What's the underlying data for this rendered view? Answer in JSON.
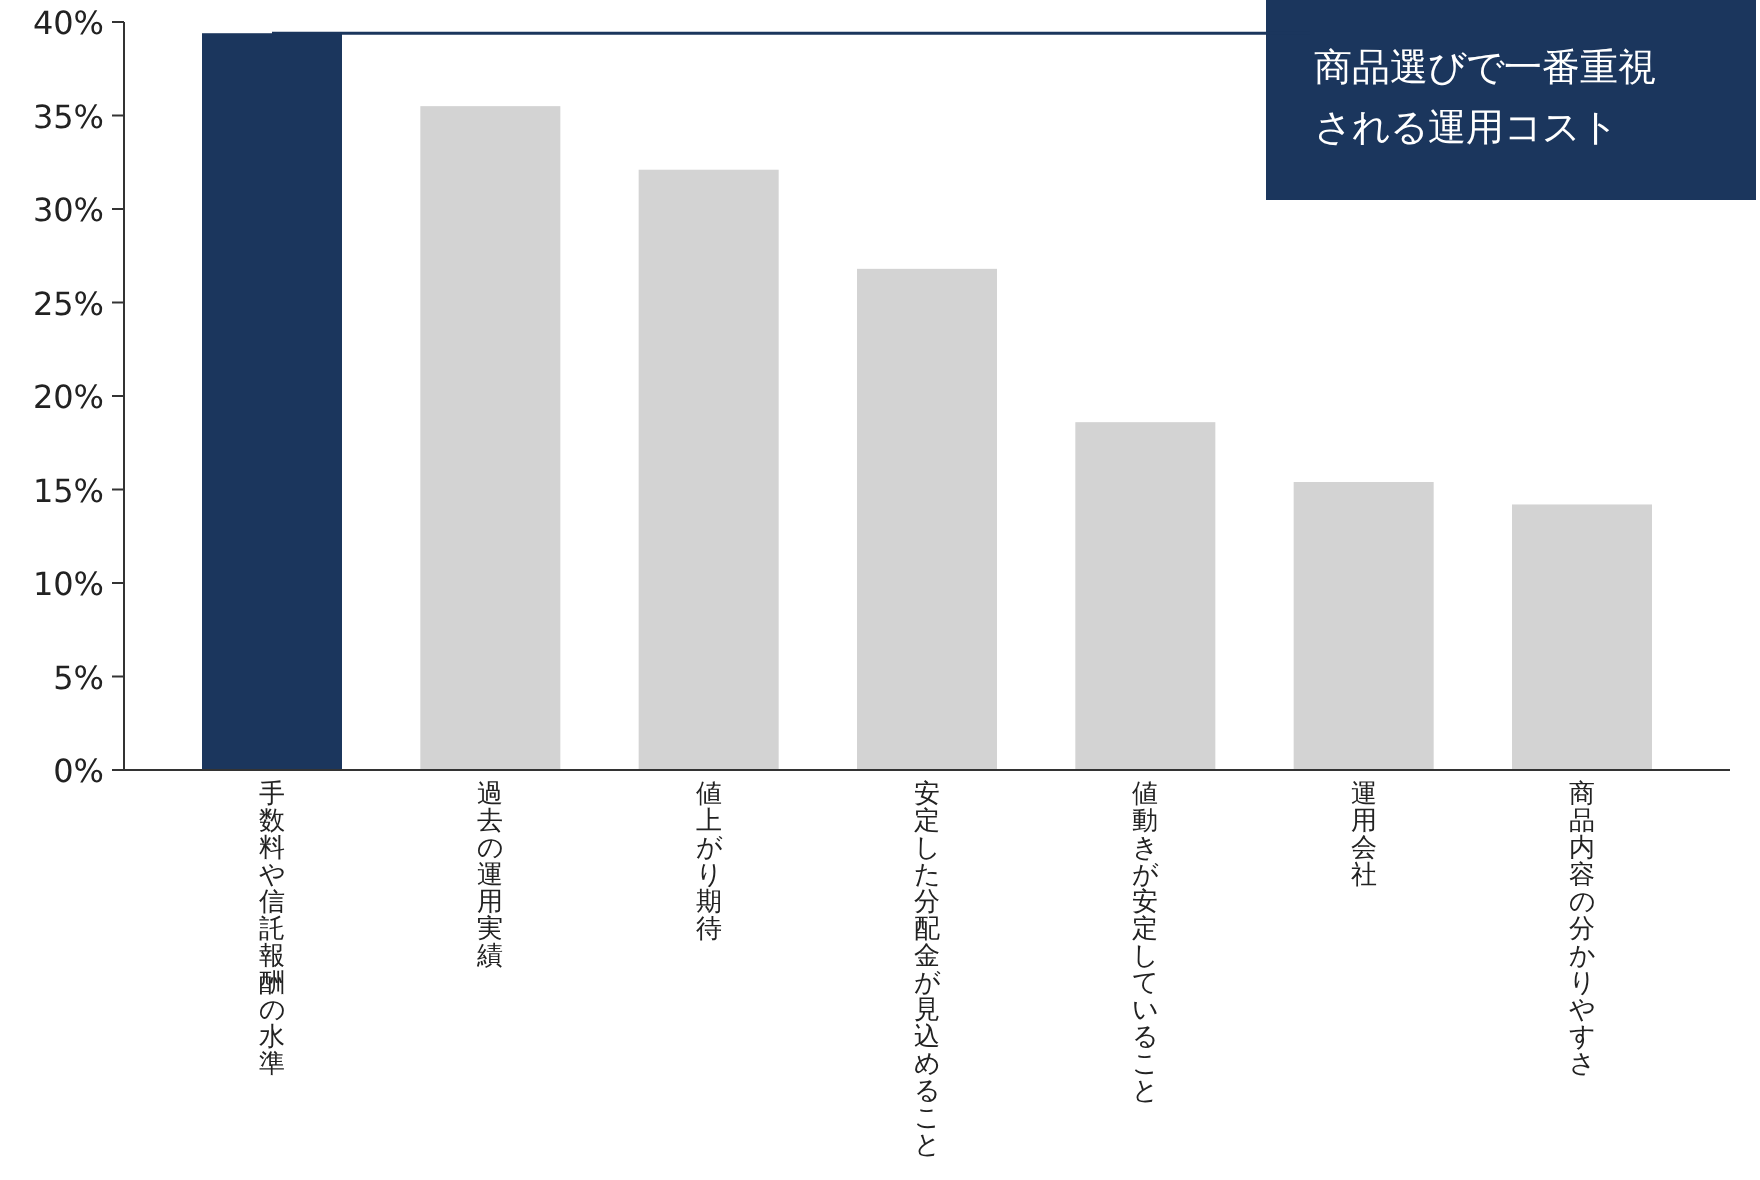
{
  "chart_data": {
    "type": "bar",
    "categories": [
      "手数料や信託報酬の水準",
      "過去の運用実績",
      "値上がり期待",
      "安定した分配金が見込めること",
      "値動きが安定していること",
      "運用会社",
      "商品内容の分かりやすさ"
    ],
    "values": [
      39.4,
      35.5,
      32.1,
      26.8,
      18.6,
      15.4,
      14.2
    ],
    "colors": [
      "#1b365d",
      "#d3d3d3",
      "#d3d3d3",
      "#d3d3d3",
      "#d3d3d3",
      "#d3d3d3",
      "#d3d3d3"
    ],
    "ylim": [
      0,
      40
    ],
    "yticks": [
      {
        "value": 0,
        "label": "0%"
      },
      {
        "value": 5,
        "label": "5%"
      },
      {
        "value": 10,
        "label": "10%"
      },
      {
        "value": 15,
        "label": "15%"
      },
      {
        "value": 20,
        "label": "20%"
      },
      {
        "value": 25,
        "label": "25%"
      },
      {
        "value": 30,
        "label": "30%"
      },
      {
        "value": 35,
        "label": "35%"
      },
      {
        "value": 40,
        "label": "40%"
      }
    ],
    "annotations": [
      {
        "text": "商品選びで一番重視される運用コスト",
        "x": "手数料や信託報酬の水準",
        "y": 39.4
      }
    ],
    "grid": false
  }
}
